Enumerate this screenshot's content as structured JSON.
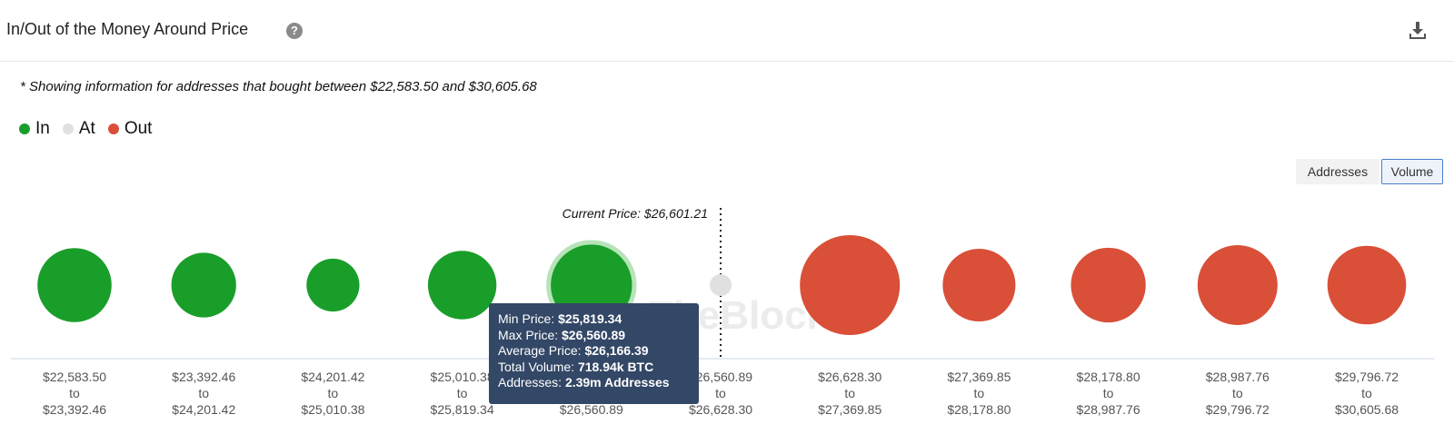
{
  "header": {
    "title": "In/Out of the Money Around Price",
    "help_icon": "?",
    "download_icon": "download-icon"
  },
  "note": "* Showing information for addresses that bought between $22,583.50 and $30,605.68",
  "legend": [
    {
      "label": "In",
      "color": "#1a9e2a"
    },
    {
      "label": "At",
      "color": "#e0e0e0"
    },
    {
      "label": "Out",
      "color": "#d94f38"
    }
  ],
  "toggle": {
    "addresses_label": "Addresses",
    "volume_label": "Volume",
    "selected": "Volume"
  },
  "chart_data": {
    "type": "scatter",
    "title": "In/Out of the Money Around Price",
    "current_price_label": "Current Price: $26,601.21",
    "current_price": 26601.21,
    "watermark": "TheBlock",
    "categories": [
      {
        "from": "$22,583.50",
        "to": "$23,392.46",
        "status": "In",
        "relative_volume": 0.55
      },
      {
        "from": "$23,392.46",
        "to": "$24,201.42",
        "status": "In",
        "relative_volume": 0.42
      },
      {
        "from": "$24,201.42",
        "to": "$25,010.38",
        "status": "In",
        "relative_volume": 0.28
      },
      {
        "from": "$25,010.38",
        "to": "$25,819.34",
        "status": "In",
        "relative_volume": 0.47
      },
      {
        "from": "$25,819.34",
        "to": "$26,560.89",
        "status": "In",
        "relative_volume": 0.66
      },
      {
        "from": "$26,560.89",
        "to": "$26,628.30",
        "status": "At",
        "relative_volume": 0.01
      },
      {
        "from": "$26,628.30",
        "to": "$27,369.85",
        "status": "Out",
        "relative_volume": 1.0
      },
      {
        "from": "$27,369.85",
        "to": "$28,178.80",
        "status": "Out",
        "relative_volume": 0.53
      },
      {
        "from": "$28,178.80",
        "to": "$28,987.76",
        "status": "Out",
        "relative_volume": 0.56
      },
      {
        "from": "$28,987.76",
        "to": "$29,796.72",
        "status": "Out",
        "relative_volume": 0.64
      },
      {
        "from": "$29,796.72",
        "to": "$30,605.68",
        "status": "Out",
        "relative_volume": 0.62
      }
    ],
    "highlighted_index": 4,
    "tooltip": {
      "min_price_label": "Min Price:",
      "min_price": "$25,819.34",
      "max_price_label": "Max Price:",
      "max_price": "$26,560.89",
      "avg_price_label": "Average Price:",
      "avg_price": "$26,166.39",
      "volume_label": "Total Volume:",
      "volume": "718.94k BTC",
      "addresses_label": "Addresses:",
      "addresses": "2.39m Addresses"
    },
    "colors": {
      "In": "#1a9e2a",
      "At": "#e0e0e0",
      "Out": "#d94f38",
      "highlight_ring": "#b7e3b9",
      "axis": "#c9d6e6"
    }
  }
}
